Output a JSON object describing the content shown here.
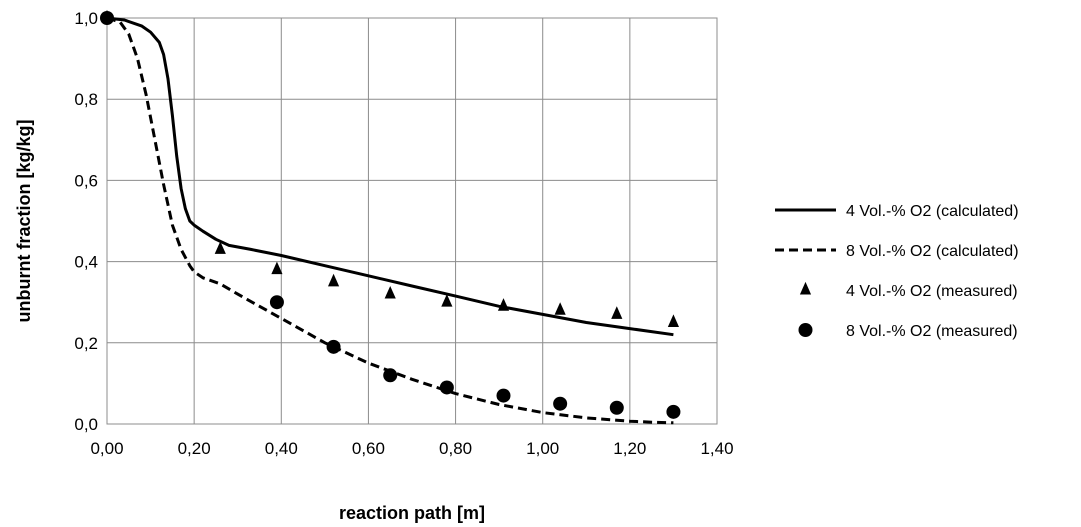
{
  "chart_data": {
    "type": "line",
    "title": "",
    "xlabel": "reaction path [m]",
    "ylabel": "unburnt fraction [kg/kg]",
    "xlim": [
      0,
      1.4
    ],
    "ylim": [
      0,
      1.0
    ],
    "x_ticks": [
      "0,00",
      "0,20",
      "0,40",
      "0,60",
      "0,80",
      "1,00",
      "1,20",
      "1,40"
    ],
    "y_ticks": [
      "0,0",
      "0,2",
      "0,4",
      "0,6",
      "0,8",
      "1,0"
    ],
    "grid": true,
    "legend_position": "right",
    "series": [
      {
        "name": "4 Vol.-% O2 (calculated)",
        "style": "solid-line",
        "color": "#000000",
        "x": [
          0.0,
          0.04,
          0.08,
          0.1,
          0.12,
          0.13,
          0.14,
          0.15,
          0.16,
          0.17,
          0.18,
          0.19,
          0.2,
          0.22,
          0.25,
          0.28,
          0.33,
          0.4,
          0.5,
          0.6,
          0.7,
          0.8,
          0.9,
          1.0,
          1.1,
          1.2,
          1.3
        ],
        "y": [
          1.0,
          0.995,
          0.98,
          0.965,
          0.94,
          0.91,
          0.85,
          0.76,
          0.66,
          0.58,
          0.53,
          0.5,
          0.49,
          0.475,
          0.455,
          0.44,
          0.43,
          0.415,
          0.39,
          0.365,
          0.34,
          0.315,
          0.29,
          0.27,
          0.25,
          0.235,
          0.22
        ]
      },
      {
        "name": "8 Vol.-% O2 (calculated)",
        "style": "dashed-line",
        "color": "#000000",
        "x": [
          0.0,
          0.03,
          0.05,
          0.07,
          0.09,
          0.11,
          0.13,
          0.15,
          0.17,
          0.19,
          0.2,
          0.22,
          0.26,
          0.3,
          0.35,
          0.4,
          0.5,
          0.6,
          0.7,
          0.8,
          0.9,
          1.0,
          1.1,
          1.2,
          1.26,
          1.3
        ],
        "y": [
          1.0,
          0.99,
          0.96,
          0.9,
          0.81,
          0.7,
          0.59,
          0.49,
          0.43,
          0.39,
          0.375,
          0.36,
          0.345,
          0.32,
          0.29,
          0.26,
          0.2,
          0.15,
          0.11,
          0.075,
          0.048,
          0.028,
          0.015,
          0.007,
          0.004,
          0.003
        ]
      },
      {
        "name": "4 Vol.-% O2 (measured)",
        "style": "triangle-marker",
        "color": "#000000",
        "x": [
          0.0,
          0.26,
          0.39,
          0.52,
          0.65,
          0.78,
          0.91,
          1.04,
          1.17,
          1.3
        ],
        "y": [
          1.0,
          0.43,
          0.38,
          0.35,
          0.32,
          0.3,
          0.29,
          0.28,
          0.27,
          0.25
        ]
      },
      {
        "name": "8 Vol.-% O2 (measured)",
        "style": "circle-marker",
        "color": "#000000",
        "x": [
          0.0,
          0.39,
          0.52,
          0.65,
          0.78,
          0.91,
          1.04,
          1.17,
          1.3
        ],
        "y": [
          1.0,
          0.3,
          0.19,
          0.12,
          0.09,
          0.07,
          0.05,
          0.04,
          0.03
        ]
      }
    ]
  },
  "colors": {
    "grid": "#8c8c8c",
    "plot_background": "#ffffff",
    "ink": "#000000"
  }
}
